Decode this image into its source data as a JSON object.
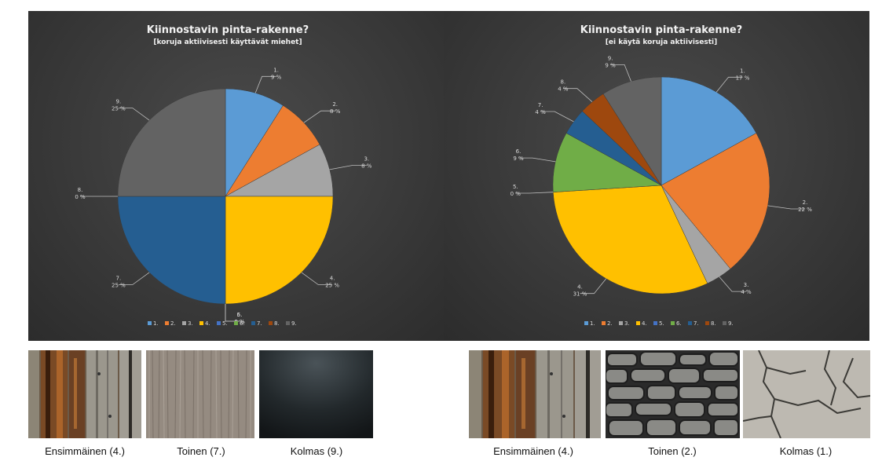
{
  "chart_data": [
    {
      "type": "pie",
      "title": "Kiinnostavin pinta-rakenne?",
      "subtitle": "[koruja aktiivisesti käyttävät miehet]",
      "categories": [
        "1.",
        "2.",
        "3.",
        "4.",
        "5.",
        "6.",
        "7.",
        "8.",
        "9."
      ],
      "values": [
        9,
        8,
        8,
        25,
        0,
        0,
        25,
        0,
        25
      ],
      "labels": [
        "9 %",
        "8 %",
        "8 %",
        "25 %",
        "0 %",
        "0 %",
        "25 %",
        "0 %",
        "25 %"
      ],
      "colors": [
        "#5b9bd5",
        "#ed7d31",
        "#a5a5a5",
        "#ffc000",
        "#4472c4",
        "#70ad47",
        "#255e91",
        "#9e480e",
        "#636363"
      ],
      "legend": "bottom"
    },
    {
      "type": "pie",
      "title": "Kiinnostavin pinta-rakenne?",
      "subtitle": "[ei käytä koruja aktiivisesti]",
      "categories": [
        "1.",
        "2.",
        "3.",
        "4.",
        "5.",
        "6.",
        "7.",
        "8.",
        "9."
      ],
      "values": [
        17,
        22,
        4,
        31,
        0,
        9,
        4,
        4,
        9
      ],
      "labels": [
        "17 %",
        "22 %",
        "4 %",
        "31 %",
        "0 %",
        "9 %",
        "4 %",
        "4 %",
        "9 %"
      ],
      "colors": [
        "#5b9bd5",
        "#ed7d31",
        "#a5a5a5",
        "#ffc000",
        "#4472c4",
        "#70ad47",
        "#255e91",
        "#9e480e",
        "#636363"
      ],
      "legend": "bottom"
    }
  ],
  "captions": {
    "left": [
      "Ensimmäinen  (4.)",
      "Toinen  (7.)",
      "Kolmas  (9.)"
    ],
    "right": [
      "Ensimmäinen  (4.)",
      "Toinen  (2.)",
      "Kolmas  (1.)"
    ]
  },
  "thumbnails": {
    "left": [
      "weathered-wood-planks",
      "grey-wood-grain",
      "dark-gradient"
    ],
    "right": [
      "weathered-wood-planks",
      "stone-wall",
      "cracked-concrete"
    ]
  }
}
